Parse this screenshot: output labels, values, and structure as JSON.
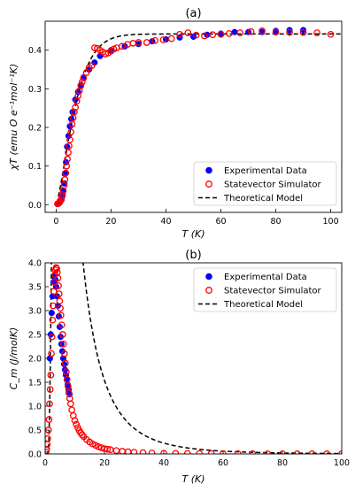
{
  "chart_data": [
    {
      "type": "scatter",
      "title": "(a)",
      "xlabel": "T (K)",
      "ylabel": "χT (emu O e⁻¹mol⁻¹K)",
      "xlim": [
        -4,
        104
      ],
      "ylim": [
        -0.02,
        0.475
      ],
      "xticks": [
        0,
        20,
        40,
        60,
        80,
        100
      ],
      "yticks": [
        0.0,
        0.1,
        0.2,
        0.3,
        0.4
      ],
      "xtick_labels": [
        "0",
        "20",
        "40",
        "60",
        "80",
        "100"
      ],
      "ytick_labels": [
        "0.0",
        "0.1",
        "0.2",
        "0.3",
        "0.4"
      ],
      "legend_position": "lower-right",
      "legend": [
        "Experimental Data",
        "Statevector Simulator",
        "Theoretical Model"
      ],
      "model": {
        "function": "chi_t",
        "name": "Theoretical Model",
        "color": "#000000",
        "style": "dashed"
      },
      "series": [
        {
          "name": "Experimental Data",
          "marker": "filled-circle",
          "color": "#0000ff",
          "x": [
            1,
            1.5,
            2,
            2.3,
            2.6,
            3,
            3.3,
            3.6,
            4,
            4.5,
            5,
            5.5,
            6,
            7,
            8,
            9,
            10,
            12,
            14,
            16,
            20,
            25,
            30,
            35,
            40,
            45,
            50,
            55,
            60,
            65,
            70,
            75,
            80,
            85,
            90
          ],
          "y": [
            0.003,
            0.007,
            0.013,
            0.022,
            0.035,
            0.055,
            0.08,
            0.11,
            0.15,
            0.178,
            0.203,
            0.222,
            0.24,
            0.272,
            0.292,
            0.31,
            0.33,
            0.35,
            0.368,
            0.385,
            0.4,
            0.41,
            0.416,
            0.423,
            0.428,
            0.433,
            0.435,
            0.44,
            0.443,
            0.447,
            0.447,
            0.447,
            0.45,
            0.452,
            0.452
          ]
        },
        {
          "name": "Statevector Simulator",
          "marker": "open-circle",
          "color": "#ff0000",
          "x": [
            0.5,
            0.8,
            1.1,
            1.4,
            1.7,
            2,
            2.3,
            2.6,
            2.9,
            3.2,
            3.5,
            3.8,
            4.1,
            4.4,
            4.7,
            5,
            5.4,
            5.8,
            6.2,
            6.6,
            7,
            7.5,
            8,
            8.5,
            9,
            9.5,
            10,
            11,
            12,
            13,
            14,
            15,
            16,
            17,
            18,
            19,
            20,
            21,
            22,
            24,
            26,
            28,
            30,
            33,
            36,
            39,
            42,
            45,
            48,
            51,
            54,
            57,
            60,
            63,
            67,
            71,
            75,
            80,
            85,
            90,
            95,
            100
          ],
          "y": [
            0.002,
            0.003,
            0.005,
            0.008,
            0.012,
            0.018,
            0.026,
            0.036,
            0.05,
            0.065,
            0.082,
            0.1,
            0.118,
            0.135,
            0.152,
            0.168,
            0.188,
            0.208,
            0.225,
            0.24,
            0.252,
            0.268,
            0.282,
            0.295,
            0.308,
            0.318,
            0.328,
            0.342,
            0.355,
            0.36,
            0.406,
            0.405,
            0.4,
            0.395,
            0.39,
            0.393,
            0.398,
            0.403,
            0.406,
            0.41,
            0.415,
            0.418,
            0.42,
            0.42,
            0.425,
            0.427,
            0.43,
            0.441,
            0.445,
            0.439,
            0.437,
            0.44,
            0.441,
            0.443,
            0.445,
            0.448,
            0.45,
            0.447,
            0.446,
            0.446,
            0.445,
            0.441
          ]
        }
      ]
    },
    {
      "type": "scatter",
      "title": "(b)",
      "xlabel": "T (K)",
      "ylabel": "C_m (J/molK)",
      "xlim": [
        0,
        100
      ],
      "ylim": [
        0,
        4.0
      ],
      "xticks": [
        0,
        20,
        40,
        60,
        80,
        100
      ],
      "yticks": [
        0.0,
        0.5,
        1.0,
        1.5,
        2.0,
        2.5,
        3.0,
        3.5,
        4.0
      ],
      "xtick_labels": [
        "0",
        "20",
        "40",
        "60",
        "80",
        "100"
      ],
      "ytick_labels": [
        "0.0",
        "0.5",
        "1.0",
        "1.5",
        "2.0",
        "2.5",
        "3.0",
        "3.5",
        "4.0"
      ],
      "legend_position": "top-right",
      "legend": [
        "Experimental Data",
        "Statevector Simulator",
        "Theoretical Model"
      ],
      "model": {
        "function": "cm",
        "name": "Theoretical Model",
        "color": "#000000",
        "style": "dashed"
      },
      "series": [
        {
          "name": "Experimental Data",
          "marker": "filled-circle",
          "color": "#0000ff",
          "x": [
            1.6,
            1.9,
            2.2,
            2.5,
            2.8,
            3.1,
            3.4,
            3.7,
            4.0,
            4.3,
            4.6,
            4.9,
            5.2,
            5.5,
            5.8,
            6.1,
            6.4,
            6.7,
            7.0,
            7.3,
            7.6,
            7.9,
            8.2
          ],
          "y": [
            2.0,
            2.5,
            2.95,
            3.3,
            3.6,
            3.72,
            3.65,
            3.5,
            3.3,
            3.1,
            2.88,
            2.66,
            2.45,
            2.3,
            2.15,
            2.0,
            1.88,
            1.76,
            1.65,
            1.55,
            1.45,
            1.35,
            1.25
          ]
        },
        {
          "name": "Statevector Simulator",
          "marker": "open-circle",
          "color": "#ff0000",
          "x": [
            0.3,
            0.5,
            0.7,
            0.9,
            1.1,
            1.3,
            1.5,
            1.7,
            1.9,
            2.1,
            2.3,
            2.5,
            2.7,
            2.9,
            3.1,
            3.3,
            3.5,
            3.7,
            3.9,
            4.1,
            4.3,
            4.5,
            4.7,
            4.9,
            5.1,
            5.3,
            5.6,
            5.9,
            6.2,
            6.5,
            6.8,
            7.1,
            7.4,
            7.7,
            8.0,
            8.3,
            8.6,
            9,
            9.5,
            10,
            10.5,
            11,
            11.5,
            12,
            12.5,
            13,
            14,
            15,
            16,
            17,
            18,
            19,
            20,
            21,
            22,
            24,
            26,
            28,
            30,
            33,
            36,
            40,
            44,
            48,
            52,
            56,
            60,
            65,
            70,
            75,
            80,
            85,
            90,
            95,
            100
          ],
          "y": [
            0.04,
            0.1,
            0.2,
            0.32,
            0.5,
            0.72,
            1.05,
            1.35,
            1.65,
            2.1,
            2.45,
            2.8,
            3.1,
            3.4,
            3.6,
            3.75,
            3.85,
            3.9,
            3.88,
            3.8,
            3.68,
            3.52,
            3.35,
            3.2,
            3.05,
            2.9,
            2.7,
            2.5,
            2.3,
            2.1,
            1.9,
            1.72,
            1.56,
            1.42,
            1.28,
            1.16,
            1.05,
            0.92,
            0.8,
            0.7,
            0.62,
            0.55,
            0.49,
            0.44,
            0.4,
            0.36,
            0.3,
            0.25,
            0.21,
            0.18,
            0.15,
            0.13,
            0.11,
            0.1,
            0.09,
            0.07,
            0.055,
            0.045,
            0.035,
            0.027,
            0.02,
            0.015,
            0.012,
            0.01,
            0.008,
            0.007,
            0.006,
            0.005,
            0.004,
            0.003,
            0.003,
            0.002,
            0.002,
            0.002,
            0.002
          ]
        }
      ]
    }
  ]
}
